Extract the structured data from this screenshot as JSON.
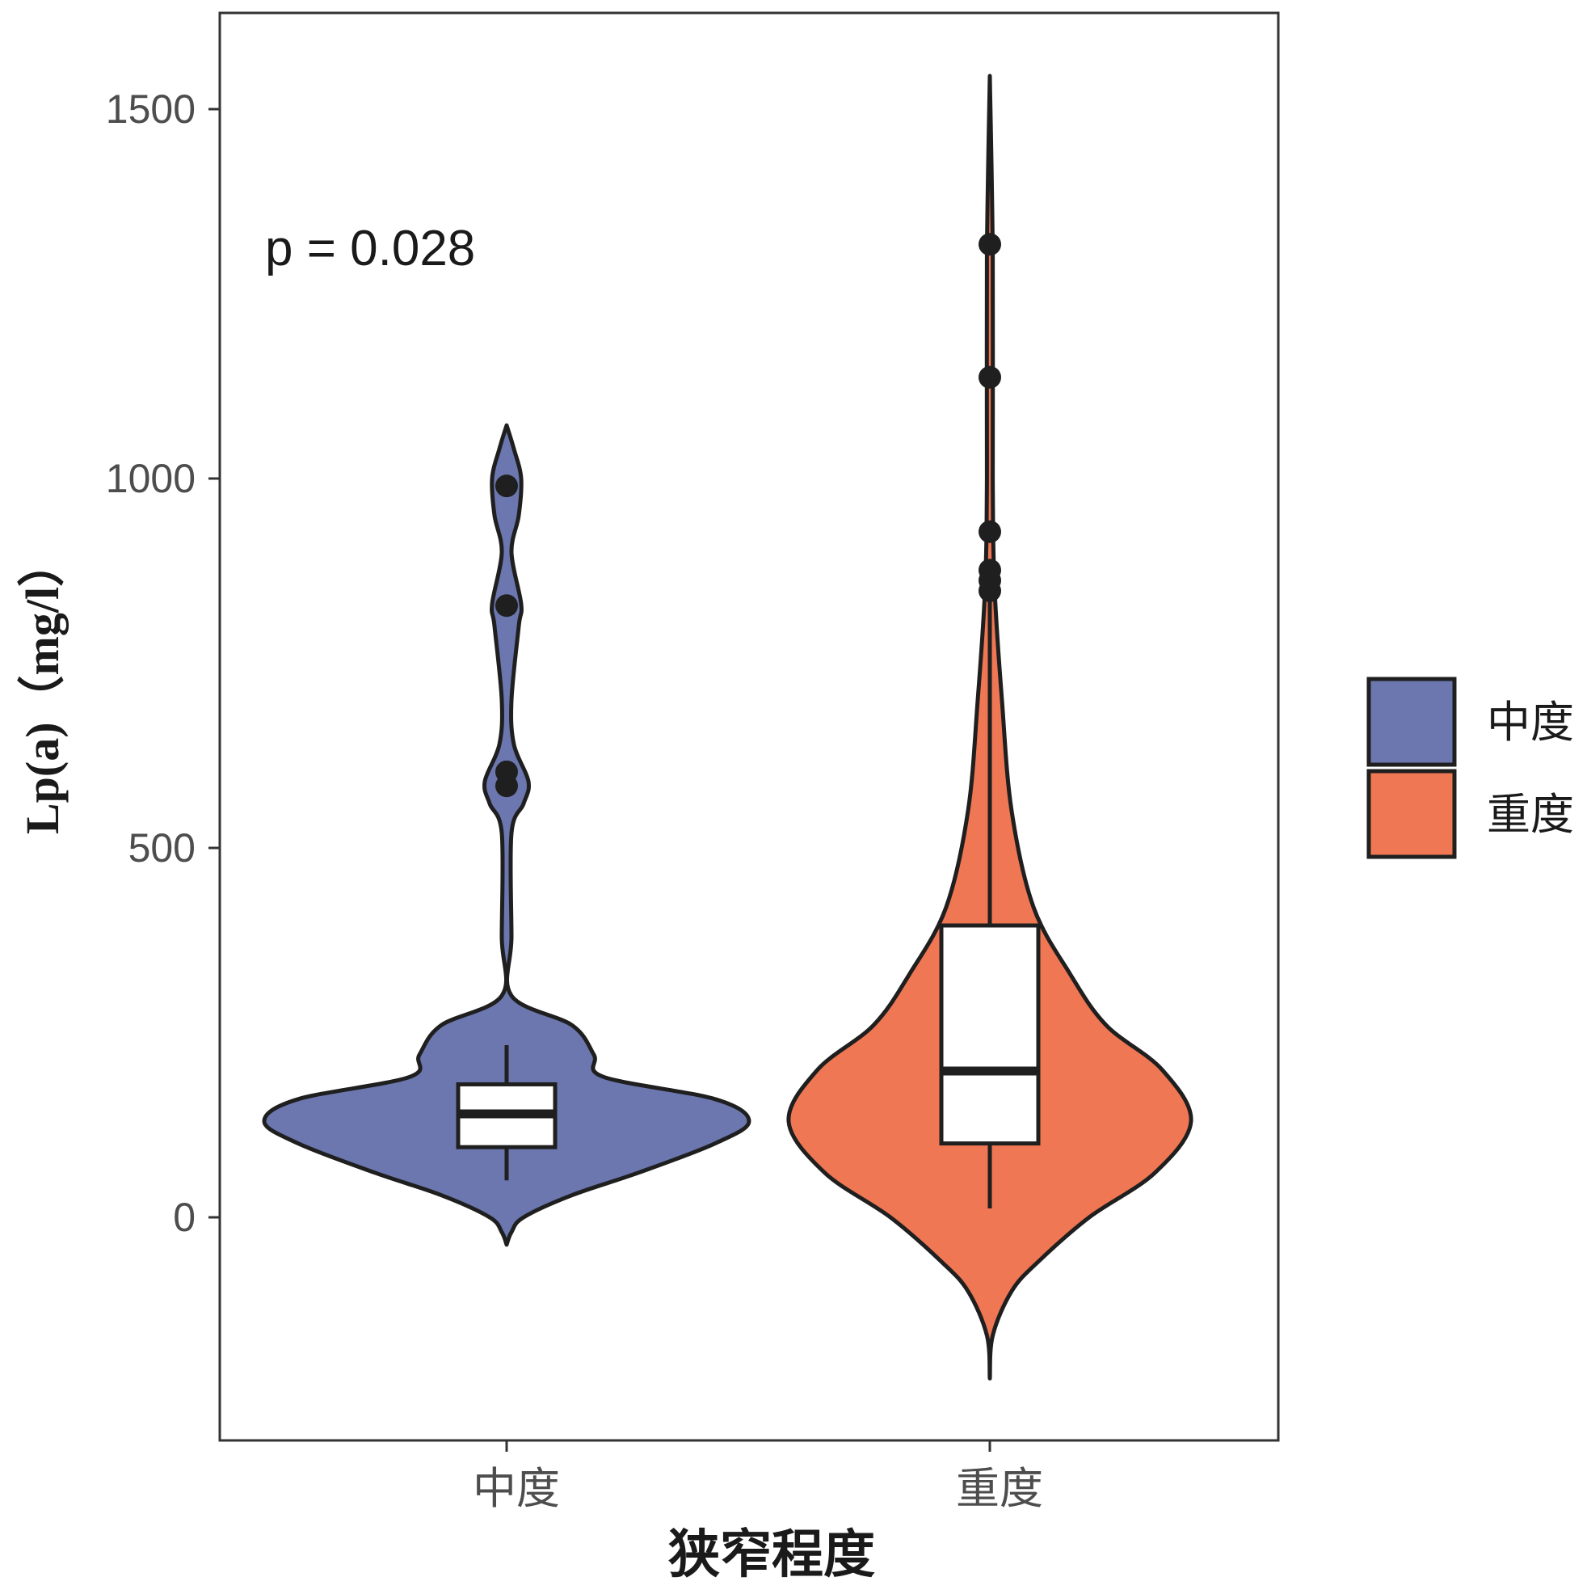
{
  "chart_data": {
    "type": "violin",
    "xlabel": "狭窄程度",
    "ylabel": "Lp(a)（mg/l）",
    "annotation": "p = 0.028",
    "ylim": [
      -300,
      1630
    ],
    "y_ticks": [
      0,
      500,
      1000,
      1500
    ],
    "grid": false,
    "legend_position": "right",
    "categories": [
      "中度",
      "重度"
    ],
    "colors": {
      "中度": "#6b77ae",
      "重度": "#ef7753",
      "outline": "#1f1f1f"
    },
    "groups": [
      {
        "name": "中度",
        "box": {
          "whisker_low": 50,
          "q1": 95,
          "median": 140,
          "q3": 180,
          "whisker_high": 233
        },
        "outliers": [
          990,
          828,
          603,
          584
        ],
        "violin_range": [
          -37,
          1072
        ],
        "density": [
          [
            -37,
            0.0
          ],
          [
            -20,
            0.02
          ],
          [
            0,
            0.07
          ],
          [
            30,
            0.27
          ],
          [
            60,
            0.54
          ],
          [
            100,
            0.86
          ],
          [
            130,
            1.0
          ],
          [
            160,
            0.86
          ],
          [
            190,
            0.4
          ],
          [
            220,
            0.36
          ],
          [
            260,
            0.27
          ],
          [
            300,
            0.02
          ],
          [
            380,
            0.02
          ],
          [
            520,
            0.02
          ],
          [
            560,
            0.07
          ],
          [
            590,
            0.09
          ],
          [
            640,
            0.03
          ],
          [
            700,
            0.02
          ],
          [
            800,
            0.05
          ],
          [
            830,
            0.06
          ],
          [
            900,
            0.02
          ],
          [
            950,
            0.05
          ],
          [
            1000,
            0.06
          ],
          [
            1040,
            0.03
          ],
          [
            1072,
            0.0
          ]
        ]
      },
      {
        "name": "重度",
        "box": {
          "whisker_low": 12,
          "q1": 100,
          "median": 198,
          "q3": 395,
          "whisker_high": 840
        },
        "outliers": [
          1317,
          1137,
          928,
          876,
          862,
          848
        ],
        "violin_range": [
          -218,
          1545
        ],
        "density": [
          [
            -218,
            0.0
          ],
          [
            -160,
            0.01
          ],
          [
            -100,
            0.09
          ],
          [
            -60,
            0.2
          ],
          [
            0,
            0.41
          ],
          [
            60,
            0.68
          ],
          [
            130,
            0.83
          ],
          [
            200,
            0.71
          ],
          [
            260,
            0.48
          ],
          [
            330,
            0.33
          ],
          [
            420,
            0.18
          ],
          [
            550,
            0.09
          ],
          [
            700,
            0.05
          ],
          [
            850,
            0.02
          ],
          [
            1000,
            0.01
          ],
          [
            1300,
            0.01
          ],
          [
            1545,
            0.0
          ]
        ]
      }
    ]
  }
}
